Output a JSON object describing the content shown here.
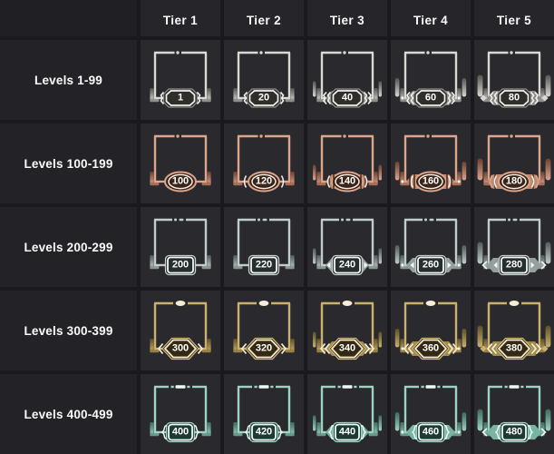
{
  "header": {
    "tiers": [
      "Tier 1",
      "Tier 2",
      "Tier 3",
      "Tier 4",
      "Tier 5"
    ]
  },
  "rows": [
    {
      "label": "Levels 1-99",
      "badge_style": "octagon",
      "top_marker": "dot",
      "colors": {
        "frame": "#d9d8d4",
        "accent": "#8f8e8a",
        "dark": "#55544f",
        "badge_fill": "#2f2e2b",
        "badge_stroke": "#f2f1ed",
        "plate": "#8b8a86"
      },
      "levels": [
        "1",
        "20",
        "40",
        "60",
        "80"
      ]
    },
    {
      "label": "Levels 100-199",
      "badge_style": "oval",
      "top_marker": "dot",
      "colors": {
        "frame": "#dca58e",
        "accent": "#a96c54",
        "dark": "#6b4030",
        "badge_fill": "#3b2418",
        "badge_stroke": "#f7ede6",
        "plate": "#bd8a70"
      },
      "levels": [
        "100",
        "120",
        "140",
        "160",
        "180"
      ]
    },
    {
      "label": "Levels 200-299",
      "badge_style": "plate",
      "top_marker": "dash-dot",
      "colors": {
        "frame": "#c2cdcb",
        "accent": "#899694",
        "dark": "#4f5b5a",
        "badge_fill": "#262f2e",
        "badge_stroke": "#f2f6f5",
        "plate": "#93a09e"
      },
      "levels": [
        "200",
        "220",
        "240",
        "260",
        "280"
      ]
    },
    {
      "label": "Levels 300-399",
      "badge_style": "eye",
      "top_marker": "oval",
      "colors": {
        "frame": "#cbb170",
        "accent": "#97803f",
        "dark": "#5e4f26",
        "badge_fill": "#342a13",
        "badge_stroke": "#f5edd8",
        "plate": "#a08b4a"
      },
      "levels": [
        "300",
        "320",
        "340",
        "360",
        "380"
      ]
    },
    {
      "label": "Levels 400-499",
      "badge_style": "brace",
      "top_marker": "dash",
      "colors": {
        "frame": "#9ed3c2",
        "accent": "#68998c",
        "dark": "#3d6a5e",
        "badge_fill": "#1d3b33",
        "badge_stroke": "#eef9f5",
        "plate": "#79b3a4"
      },
      "levels": [
        "400",
        "420",
        "440",
        "460",
        "480"
      ]
    }
  ],
  "theme": {
    "page_bg": "#1a1a1e",
    "corner_bg": "#202024",
    "header_bg": "#25252a",
    "label_bg": "#232327",
    "cell_bg": "#2a2a2e",
    "text": "#fafafa"
  }
}
